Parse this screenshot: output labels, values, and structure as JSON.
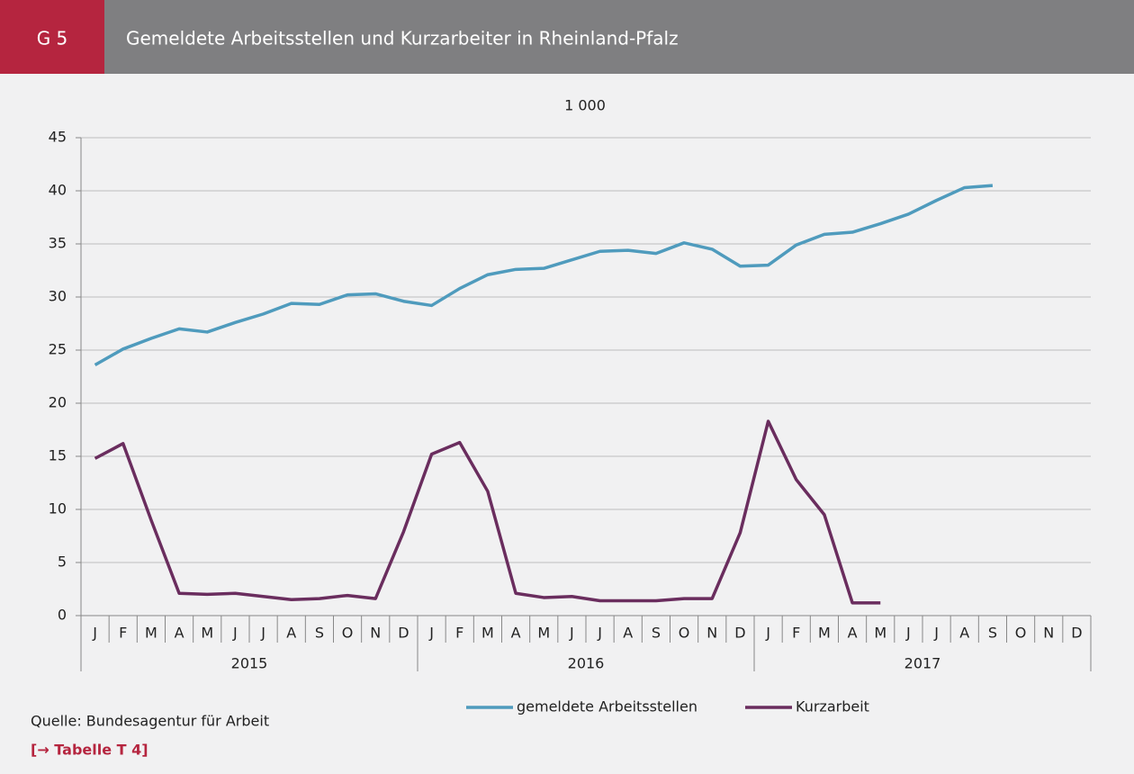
{
  "header": {
    "code": "G 5",
    "title": "Gemeldete Arbeitsstellen und Kurzarbeiter in Rheinland-Pfalz"
  },
  "chart_data": {
    "type": "line",
    "unit_label": "1 000",
    "categories": [
      "J",
      "F",
      "M",
      "A",
      "M",
      "J",
      "J",
      "A",
      "S",
      "O",
      "N",
      "D",
      "J",
      "F",
      "M",
      "A",
      "M",
      "J",
      "J",
      "A",
      "S",
      "O",
      "N",
      "D",
      "J",
      "F",
      "M",
      "A",
      "M",
      "J",
      "J",
      "A",
      "S",
      "O",
      "N",
      "D"
    ],
    "years": [
      "2015",
      "2016",
      "2017"
    ],
    "series": [
      {
        "name": "gemeldete Arbeitsstellen",
        "color": "#4f9bbd",
        "values": [
          23.6,
          25.1,
          26.1,
          27.0,
          26.7,
          27.6,
          28.4,
          29.4,
          29.3,
          30.2,
          30.3,
          29.6,
          29.2,
          30.8,
          32.1,
          32.6,
          32.7,
          33.5,
          34.3,
          34.4,
          34.1,
          35.1,
          34.5,
          32.9,
          33.0,
          34.9,
          35.9,
          36.1,
          36.9,
          37.8,
          39.1,
          40.3,
          40.5,
          null,
          null,
          null
        ]
      },
      {
        "name": "Kurzarbeit",
        "color": "#6a2d5e",
        "values": [
          14.8,
          16.2,
          9.0,
          2.1,
          2.0,
          2.1,
          1.8,
          1.5,
          1.6,
          1.9,
          1.6,
          7.9,
          15.2,
          16.3,
          11.7,
          2.1,
          1.7,
          1.8,
          1.4,
          1.4,
          1.4,
          1.6,
          1.6,
          7.8,
          18.3,
          12.8,
          9.5,
          1.2,
          1.2,
          null,
          null,
          null,
          null,
          null,
          null,
          null
        ]
      }
    ],
    "ylim": [
      0,
      45
    ],
    "yticks": [
      0,
      5,
      10,
      15,
      20,
      25,
      30,
      35,
      40,
      45
    ],
    "grid": true
  },
  "footer": {
    "source": "Quelle: Bundesagentur für Arbeit",
    "link": "[→ Tabelle T 4]"
  }
}
